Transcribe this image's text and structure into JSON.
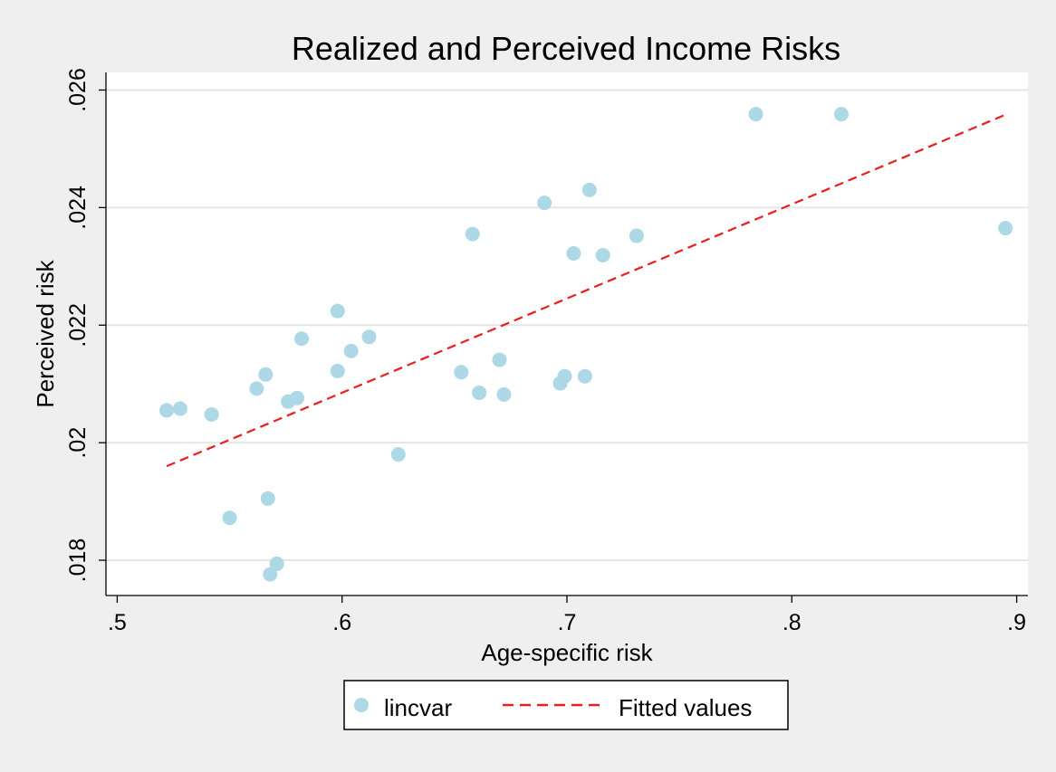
{
  "chart_data": {
    "type": "scatter",
    "title": "Realized and Perceived Income Risks",
    "xlabel": "Age-specific risk",
    "ylabel": "Perceived risk",
    "xlim": [
      0.495,
      0.905
    ],
    "ylim": [
      0.0174,
      0.0263
    ],
    "xticks": [
      {
        "value": 0.5,
        "label": ".5"
      },
      {
        "value": 0.6,
        "label": ".6"
      },
      {
        "value": 0.7,
        "label": ".7"
      },
      {
        "value": 0.8,
        "label": ".8"
      },
      {
        "value": 0.9,
        "label": ".9"
      }
    ],
    "yticks": [
      {
        "value": 0.018,
        "label": ".018"
      },
      {
        "value": 0.02,
        "label": ".02"
      },
      {
        "value": 0.022,
        "label": ".022"
      },
      {
        "value": 0.024,
        "label": ".024"
      },
      {
        "value": 0.026,
        "label": ".026"
      }
    ],
    "grid": true,
    "legend_position": "bottom",
    "series": [
      {
        "name": "lincvar",
        "kind": "scatter",
        "color": "#add8e6",
        "points": [
          {
            "x": 0.522,
            "y": 0.02055
          },
          {
            "x": 0.528,
            "y": 0.02058
          },
          {
            "x": 0.542,
            "y": 0.02048
          },
          {
            "x": 0.55,
            "y": 0.01872
          },
          {
            "x": 0.562,
            "y": 0.02092
          },
          {
            "x": 0.566,
            "y": 0.02116
          },
          {
            "x": 0.567,
            "y": 0.01905
          },
          {
            "x": 0.568,
            "y": 0.01776
          },
          {
            "x": 0.571,
            "y": 0.01794
          },
          {
            "x": 0.576,
            "y": 0.0207
          },
          {
            "x": 0.58,
            "y": 0.02076
          },
          {
            "x": 0.582,
            "y": 0.02177
          },
          {
            "x": 0.598,
            "y": 0.02224
          },
          {
            "x": 0.598,
            "y": 0.02122
          },
          {
            "x": 0.604,
            "y": 0.02156
          },
          {
            "x": 0.612,
            "y": 0.0218
          },
          {
            "x": 0.625,
            "y": 0.0198
          },
          {
            "x": 0.653,
            "y": 0.0212
          },
          {
            "x": 0.658,
            "y": 0.02355
          },
          {
            "x": 0.661,
            "y": 0.02085
          },
          {
            "x": 0.67,
            "y": 0.02141
          },
          {
            "x": 0.672,
            "y": 0.02082
          },
          {
            "x": 0.69,
            "y": 0.02408
          },
          {
            "x": 0.697,
            "y": 0.02101
          },
          {
            "x": 0.699,
            "y": 0.02113
          },
          {
            "x": 0.703,
            "y": 0.02322
          },
          {
            "x": 0.708,
            "y": 0.02113
          },
          {
            "x": 0.71,
            "y": 0.0243
          },
          {
            "x": 0.716,
            "y": 0.02319
          },
          {
            "x": 0.731,
            "y": 0.02352
          },
          {
            "x": 0.784,
            "y": 0.02559
          },
          {
            "x": 0.822,
            "y": 0.02559
          },
          {
            "x": 0.895,
            "y": 0.02365
          }
        ]
      },
      {
        "name": "Fitted values",
        "kind": "line",
        "style": "dashed",
        "color": "#e8201f",
        "points": [
          {
            "x": 0.522,
            "y": 0.0196
          },
          {
            "x": 0.895,
            "y": 0.02558
          }
        ]
      }
    ]
  }
}
